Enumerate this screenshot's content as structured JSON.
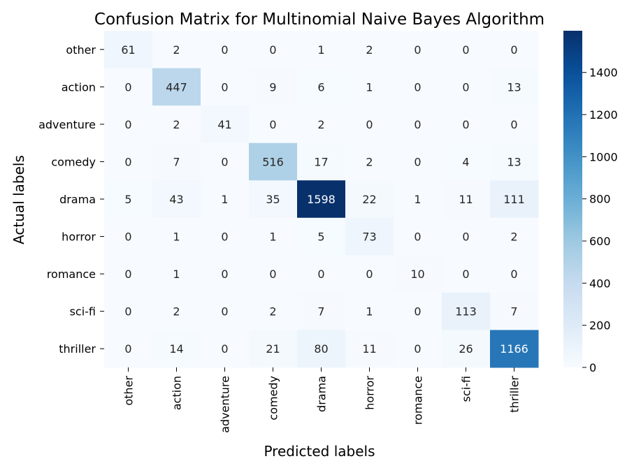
{
  "chart_data": {
    "type": "heatmap",
    "title": "Confusion Matrix for Multinomial Naive Bayes Algorithm",
    "xlabel": "Predicted labels",
    "ylabel": "Actual labels",
    "categories": [
      "other",
      "action",
      "adventure",
      "comedy",
      "drama",
      "horror",
      "romance",
      "sci-fi",
      "thriller"
    ],
    "matrix": [
      [
        61,
        2,
        0,
        0,
        1,
        2,
        0,
        0,
        0
      ],
      [
        0,
        447,
        0,
        9,
        6,
        1,
        0,
        0,
        13
      ],
      [
        0,
        2,
        41,
        0,
        2,
        0,
        0,
        0,
        0
      ],
      [
        0,
        7,
        0,
        516,
        17,
        2,
        0,
        4,
        13
      ],
      [
        5,
        43,
        1,
        35,
        1598,
        22,
        1,
        11,
        111
      ],
      [
        0,
        1,
        0,
        1,
        5,
        73,
        0,
        0,
        2
      ],
      [
        0,
        1,
        0,
        0,
        0,
        0,
        10,
        0,
        0
      ],
      [
        0,
        2,
        0,
        2,
        7,
        1,
        0,
        113,
        7
      ],
      [
        0,
        14,
        0,
        21,
        80,
        11,
        0,
        26,
        1166
      ]
    ],
    "colorbar": {
      "min": 0,
      "max": 1598,
      "ticks": [
        0,
        200,
        400,
        600,
        800,
        1000,
        1200,
        1400
      ],
      "colormap": "Blues"
    },
    "grid": false,
    "legend": "colorbar-right"
  }
}
